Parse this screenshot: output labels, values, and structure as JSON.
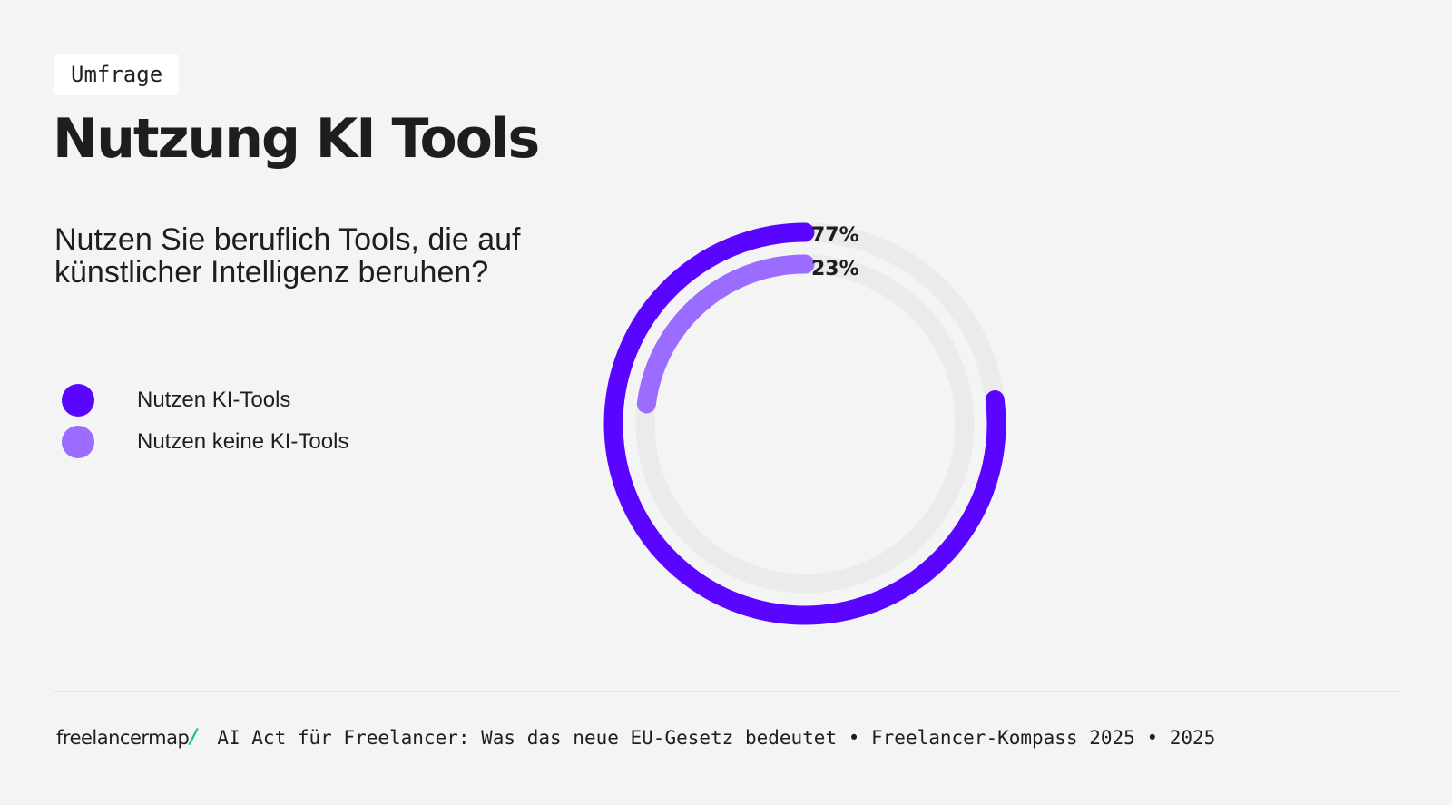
{
  "header": {
    "tag": "Umfrage",
    "title": "Nutzung KI Tools",
    "question": "Nutzen Sie beruflich Tools, die auf künstlicher Intelligenz beruhen?"
  },
  "footer": {
    "logo_text": "freelancermap",
    "logo_slash": "/",
    "source": "AI Act für Freelancer: Was das neue EU-Gesetz bedeutet • Freelancer-Kompass 2025 • 2025"
  },
  "colors": {
    "background": "#f4f4f4",
    "track": "#ebebeb",
    "accent_logo": "#17c3a4"
  },
  "chart_data": {
    "type": "pie",
    "style": "radial-rings",
    "categories": [
      "Nutzen KI-Tools",
      "Nutzen keine KI-Tools"
    ],
    "values": [
      77,
      23
    ],
    "value_labels": [
      "77%",
      "23%"
    ],
    "colors": [
      "#5a05ff",
      "#9a6cff"
    ],
    "unit": "%",
    "legend": "left"
  }
}
